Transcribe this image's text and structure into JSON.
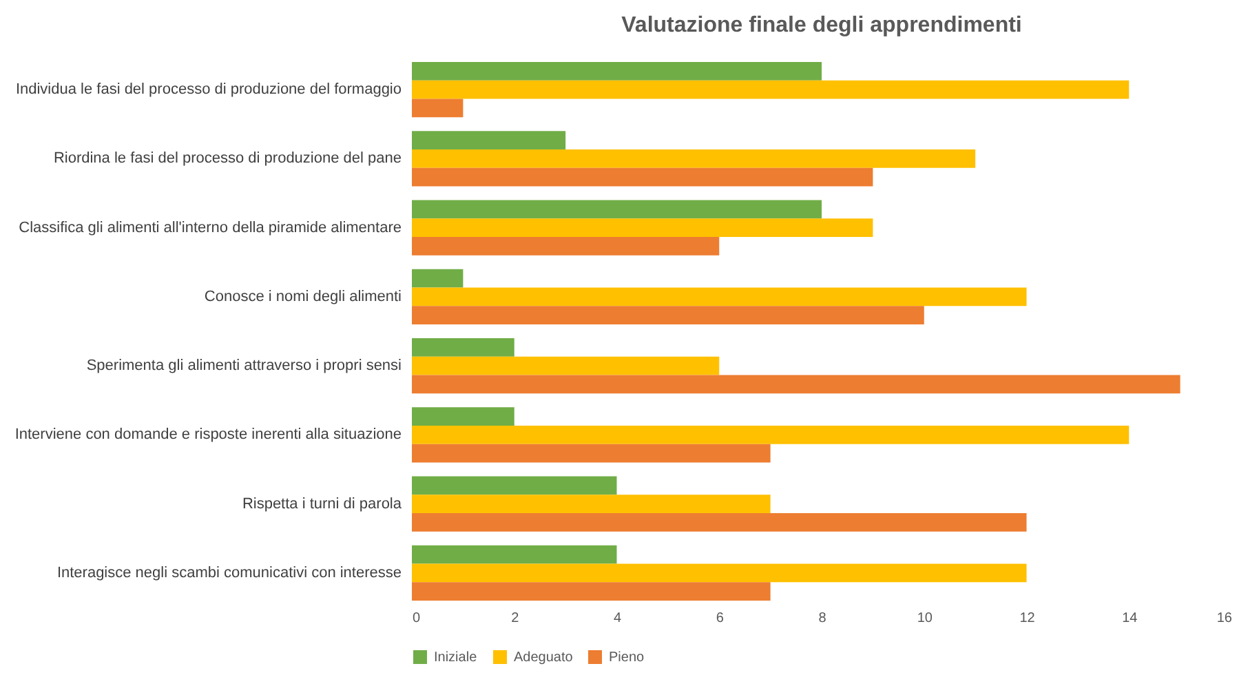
{
  "chart_data": {
    "type": "bar",
    "orientation": "horizontal",
    "title": "Valutazione finale degli apprendimenti",
    "categories": [
      "Individua le fasi del processo di produzione del formaggio",
      "Riordina le fasi del processo di produzione del pane",
      "Classifica gli alimenti all'interno della piramide alimentare",
      "Conosce i nomi degli alimenti",
      "Sperimenta gli alimenti attraverso i propri sensi",
      "Interviene con domande e risposte inerenti alla situazione",
      "Rispetta i turni di parola",
      "Interagisce negli scambi comunicativi con interesse"
    ],
    "series": [
      {
        "name": "Iniziale",
        "color": "#70ad47",
        "values": [
          8,
          3,
          8,
          1,
          2,
          2,
          4,
          4
        ]
      },
      {
        "name": "Adeguato",
        "color": "#ffc000",
        "values": [
          14,
          11,
          9,
          12,
          6,
          14,
          7,
          12
        ]
      },
      {
        "name": "Pieno",
        "color": "#ed7d31",
        "values": [
          1,
          9,
          6,
          10,
          15,
          7,
          12,
          7
        ]
      }
    ],
    "xlim": [
      0,
      16
    ],
    "xticks": [
      0,
      2,
      4,
      6,
      8,
      10,
      12,
      14,
      16
    ],
    "grid": false,
    "legend": "bottom"
  }
}
